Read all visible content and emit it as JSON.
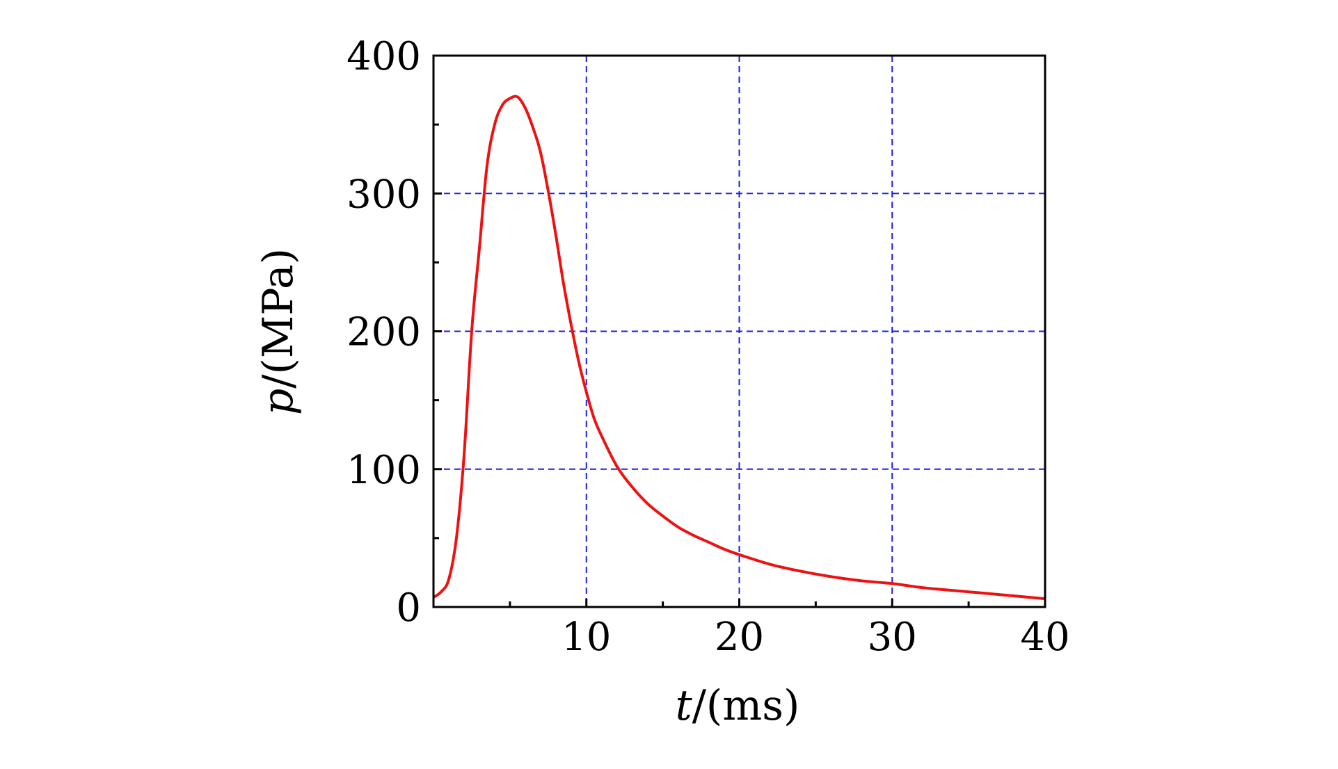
{
  "chart_data": {
    "type": "line",
    "xlabel": {
      "var": "t",
      "unit": "/(ms)"
    },
    "ylabel": {
      "var": "p",
      "unit": "/(MPa)"
    },
    "xlim": [
      0,
      40
    ],
    "ylim": [
      0,
      400
    ],
    "x_ticks": [
      10,
      20,
      30,
      40
    ],
    "x_tick_labels": [
      "10",
      "20",
      "30",
      "40"
    ],
    "x_minor_ticks": [
      5,
      15,
      25,
      35
    ],
    "y_ticks": [
      0,
      100,
      200,
      300,
      400
    ],
    "y_tick_labels": [
      "0",
      "100",
      "200",
      "300",
      "400"
    ],
    "y_minor_ticks": [
      50,
      150,
      250,
      350
    ],
    "grid": "dashed",
    "colors": {
      "line": "#ee1111",
      "grid": "#1a1aee",
      "axes": "#000000"
    },
    "series": [
      {
        "x": [
          0,
          0.5,
          1.0,
          1.5,
          2.0,
          2.5,
          3.0,
          3.5,
          4.0,
          4.5,
          5.0,
          5.5,
          6.0,
          6.5,
          7.0,
          7.5,
          8.0,
          8.5,
          9.0,
          9.5,
          10.0,
          10.5,
          11.0,
          12.0,
          13.0,
          14.0,
          15.0,
          16.0,
          17.0,
          18.0,
          19.0,
          20.0,
          22.0,
          24.0,
          26.0,
          28.0,
          30.0,
          32.0,
          34.0,
          36.0,
          38.0,
          40.0
        ],
        "y": [
          7,
          11,
          20,
          50,
          110,
          200,
          260,
          320,
          350,
          364,
          369,
          370,
          362,
          348,
          330,
          302,
          270,
          235,
          205,
          178,
          156,
          137,
          124,
          102,
          87,
          75,
          66,
          58,
          52,
          47,
          42,
          38,
          31,
          26,
          22,
          19,
          17,
          14,
          12,
          10,
          8,
          6
        ]
      }
    ]
  }
}
